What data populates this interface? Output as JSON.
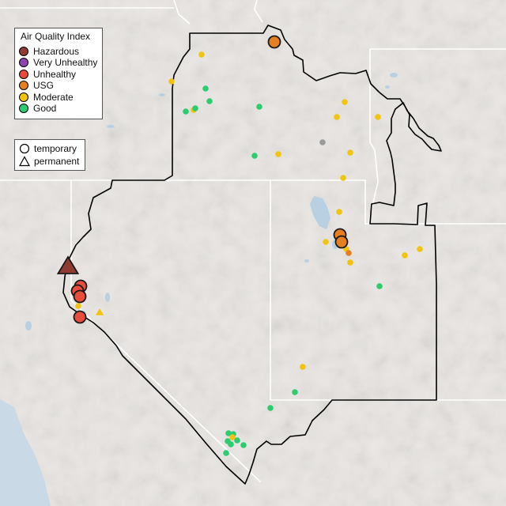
{
  "legend": {
    "title": "Air Quality Index",
    "categories": [
      {
        "key": "hazardous",
        "label": "Hazardous",
        "color": "#8e3b34"
      },
      {
        "key": "very-unhealthy",
        "label": "Very Unhealthy",
        "color": "#8e44ad"
      },
      {
        "key": "unhealthy",
        "label": "Unhealthy",
        "color": "#e74c3c"
      },
      {
        "key": "usg",
        "label": "USG",
        "color": "#e67e22"
      },
      {
        "key": "moderate",
        "label": "Moderate",
        "color": "#f1c40f"
      },
      {
        "key": "good",
        "label": "Good",
        "color": "#2ecc71"
      }
    ],
    "shapes": [
      {
        "key": "temporary",
        "label": "temporary",
        "icon": "circle-icon"
      },
      {
        "key": "permanent",
        "label": "permanent",
        "icon": "triangle-icon"
      }
    ]
  },
  "colors": {
    "land": "#e9e6e3",
    "ocean": "#c9d9e6",
    "water": "#b9cfe2",
    "state_border": "#ffffff",
    "region_outline": "#000000",
    "no_data": "#9a9a9a"
  }
}
